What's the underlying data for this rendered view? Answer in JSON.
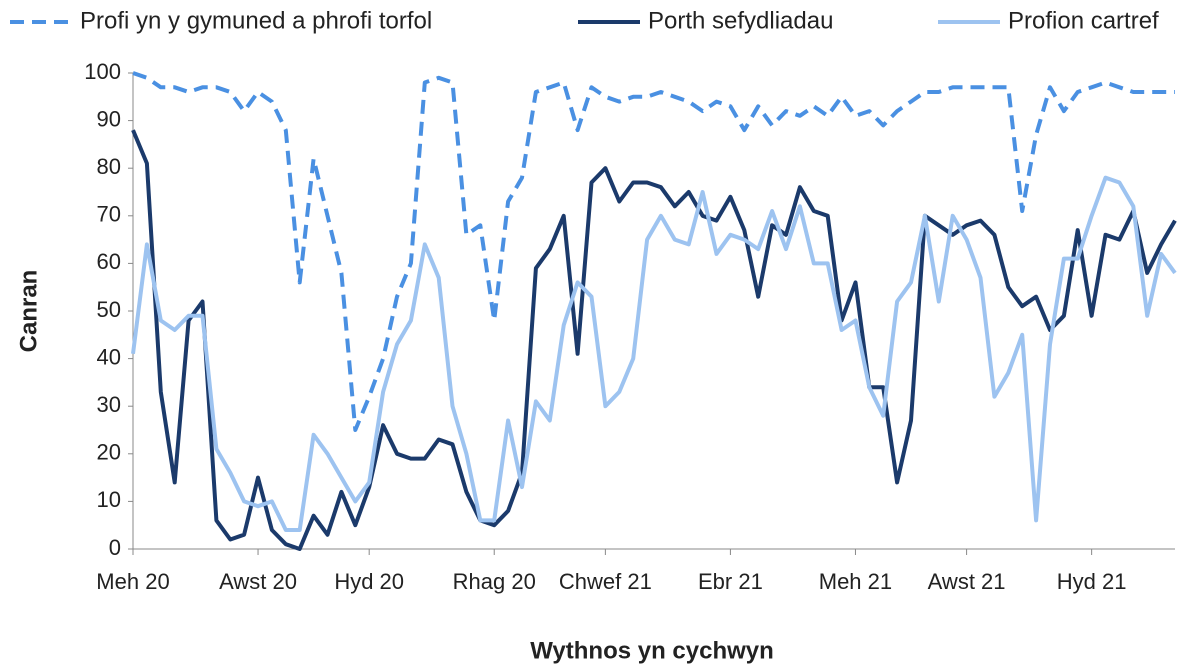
{
  "chart_data": {
    "type": "line",
    "xlabel": "Wythnos yn cychwyn",
    "ylabel": "Canran",
    "categories": [
      "Meh 20",
      null,
      null,
      null,
      null,
      null,
      null,
      null,
      null,
      "Awst 20",
      null,
      null,
      null,
      null,
      null,
      null,
      null,
      "Hyd 20",
      null,
      null,
      null,
      null,
      null,
      null,
      null,
      null,
      "Rhag 20",
      null,
      null,
      null,
      null,
      null,
      null,
      null,
      "Chwef 21",
      null,
      null,
      null,
      null,
      null,
      null,
      null,
      null,
      "Ebr 21",
      null,
      null,
      null,
      null,
      null,
      null,
      null,
      null,
      "Meh 21",
      null,
      null,
      null,
      null,
      null,
      null,
      null,
      "Awst 21",
      null,
      null,
      null,
      null,
      null,
      null,
      null,
      null,
      "Hyd 21",
      null,
      null,
      null,
      null,
      null,
      null
    ],
    "series": [
      {
        "name": "Profi yn y gymuned a phrofi torfol",
        "color": "#4a90e2",
        "dashed": true,
        "values": [
          100,
          99,
          97,
          97,
          96,
          97,
          97,
          96,
          92,
          96,
          94,
          88,
          56,
          82,
          70,
          58,
          25,
          32,
          40,
          53,
          60,
          98,
          99,
          98,
          66,
          68,
          48,
          73,
          78,
          96,
          97,
          98,
          88,
          97,
          95,
          94,
          95,
          95,
          96,
          95,
          94,
          92,
          94,
          93,
          88,
          93,
          89,
          92,
          91,
          93,
          91,
          95,
          91,
          92,
          89,
          92,
          94,
          96,
          96,
          97,
          97,
          97,
          97,
          97,
          71,
          87,
          97,
          92,
          96,
          97,
          98,
          97,
          96,
          96,
          96,
          96
        ]
      },
      {
        "name": "Porth sefydliadau",
        "color": "#1b3a6b",
        "dashed": false,
        "values": [
          88,
          81,
          33,
          14,
          48,
          52,
          6,
          2,
          3,
          15,
          4,
          1,
          0,
          7,
          3,
          12,
          5,
          13,
          26,
          20,
          19,
          19,
          23,
          22,
          12,
          6,
          5,
          8,
          16,
          59,
          63,
          70,
          41,
          77,
          80,
          73,
          77,
          77,
          76,
          72,
          75,
          70,
          69,
          74,
          67,
          53,
          68,
          66,
          76,
          71,
          70,
          48,
          56,
          34,
          34,
          14,
          27,
          70,
          68,
          66,
          68,
          69,
          66,
          55,
          51,
          53,
          46,
          49,
          67,
          49,
          66,
          65,
          71,
          58,
          64,
          69
        ]
      },
      {
        "name": "Profion cartref",
        "color": "#9dc3f0",
        "dashed": false,
        "values": [
          41,
          64,
          48,
          46,
          49,
          49,
          21,
          16,
          10,
          9,
          10,
          4,
          4,
          24,
          20,
          15,
          10,
          14,
          33,
          43,
          48,
          64,
          57,
          30,
          20,
          6,
          6,
          27,
          13,
          31,
          27,
          47,
          56,
          53,
          30,
          33,
          40,
          65,
          70,
          65,
          64,
          75,
          62,
          66,
          65,
          63,
          71,
          63,
          72,
          60,
          60,
          46,
          48,
          34,
          28,
          52,
          56,
          70,
          52,
          70,
          65,
          57,
          32,
          37,
          45,
          6,
          43,
          61,
          61,
          70,
          78,
          77,
          72,
          49,
          62,
          58
        ]
      }
    ],
    "ylim": [
      0,
      100
    ],
    "yticks": [
      0,
      10,
      20,
      30,
      40,
      50,
      60,
      70,
      80,
      90,
      100
    ],
    "grid": false,
    "legend": "top"
  }
}
